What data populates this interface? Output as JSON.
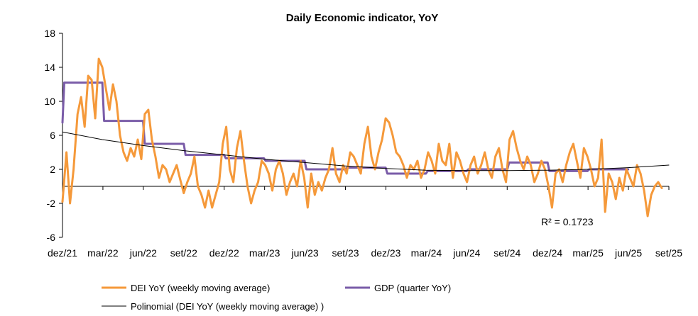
{
  "chart_data": {
    "type": "line",
    "title": "Daily Economic indicator, YoY",
    "xlabel": "",
    "ylabel": "",
    "ylim": [
      -6,
      18
    ],
    "yticks": [
      -6,
      -2,
      2,
      6,
      10,
      14,
      18
    ],
    "xlim": [
      "2021-12-01",
      "2025-09-01"
    ],
    "xticks": [
      "dez/21",
      "mar/22",
      "jun/22",
      "set/22",
      "dez/22",
      "mar/23",
      "jun/23",
      "set/23",
      "dez/23",
      "mar/24",
      "jun/24",
      "set/24",
      "dez/24",
      "mar/25",
      "jun/25",
      "set/25"
    ],
    "grid": false,
    "legend_placement": "bottom",
    "annotation": "R² = 0.1723",
    "series": [
      {
        "name": "DEI YoY (weekly moving average)",
        "color": "#f5993a",
        "x": [
          "2021-12-01",
          "2021-12-10",
          "2021-12-18",
          "2021-12-26",
          "2022-01-04",
          "2022-01-12",
          "2022-01-20",
          "2022-01-28",
          "2022-02-05",
          "2022-02-13",
          "2022-02-21",
          "2022-03-01",
          "2022-03-09",
          "2022-03-17",
          "2022-03-25",
          "2022-04-02",
          "2022-04-10",
          "2022-04-18",
          "2022-04-26",
          "2022-05-04",
          "2022-05-12",
          "2022-05-20",
          "2022-05-28",
          "2022-06-05",
          "2022-06-13",
          "2022-06-21",
          "2022-06-29",
          "2022-07-07",
          "2022-07-15",
          "2022-07-23",
          "2022-07-31",
          "2022-08-08",
          "2022-08-16",
          "2022-08-24",
          "2022-09-01",
          "2022-09-09",
          "2022-09-17",
          "2022-09-25",
          "2022-10-03",
          "2022-10-11",
          "2022-10-19",
          "2022-10-27",
          "2022-11-04",
          "2022-11-12",
          "2022-11-20",
          "2022-11-28",
          "2022-12-06",
          "2022-12-14",
          "2022-12-22",
          "2022-12-30",
          "2023-01-07",
          "2023-01-15",
          "2023-01-23",
          "2023-01-31",
          "2023-02-08",
          "2023-02-16",
          "2023-02-24",
          "2023-03-04",
          "2023-03-12",
          "2023-03-20",
          "2023-03-28",
          "2023-04-05",
          "2023-04-13",
          "2023-04-21",
          "2023-04-29",
          "2023-05-07",
          "2023-05-15",
          "2023-05-23",
          "2023-05-31",
          "2023-06-08",
          "2023-06-16",
          "2023-06-24",
          "2023-07-02",
          "2023-07-10",
          "2023-07-18",
          "2023-07-26",
          "2023-08-03",
          "2023-08-11",
          "2023-08-19",
          "2023-08-27",
          "2023-09-04",
          "2023-09-12",
          "2023-09-20",
          "2023-09-28",
          "2023-10-06",
          "2023-10-14",
          "2023-10-22",
          "2023-10-30",
          "2023-11-07",
          "2023-11-15",
          "2023-11-23",
          "2023-12-01",
          "2023-12-09",
          "2023-12-17",
          "2023-12-25",
          "2024-01-02",
          "2024-01-10",
          "2024-01-18",
          "2024-01-26",
          "2024-02-03",
          "2024-02-11",
          "2024-02-19",
          "2024-02-27",
          "2024-03-06",
          "2024-03-14",
          "2024-03-22",
          "2024-03-30",
          "2024-04-07",
          "2024-04-15",
          "2024-04-23",
          "2024-05-01",
          "2024-05-09",
          "2024-05-17",
          "2024-05-25",
          "2024-06-02",
          "2024-06-10",
          "2024-06-18",
          "2024-06-26",
          "2024-07-04",
          "2024-07-12",
          "2024-07-20",
          "2024-07-28",
          "2024-08-05",
          "2024-08-13",
          "2024-08-21",
          "2024-08-29",
          "2024-09-06",
          "2024-09-14",
          "2024-09-22",
          "2024-09-30",
          "2024-10-08",
          "2024-10-16",
          "2024-10-24",
          "2024-11-01",
          "2024-11-09",
          "2024-11-17",
          "2024-11-25",
          "2024-12-03",
          "2024-12-11",
          "2024-12-19",
          "2024-12-27",
          "2025-01-04",
          "2025-01-12",
          "2025-01-20",
          "2025-01-28",
          "2025-02-05",
          "2025-02-13",
          "2025-02-21",
          "2025-03-01",
          "2025-03-09",
          "2025-03-17",
          "2025-03-25",
          "2025-04-02",
          "2025-04-10",
          "2025-04-18",
          "2025-04-26",
          "2025-05-04",
          "2025-05-12",
          "2025-05-20",
          "2025-05-28",
          "2025-06-05",
          "2025-06-13",
          "2025-06-21",
          "2025-06-29",
          "2025-07-07",
          "2025-07-15",
          "2025-07-23",
          "2025-07-31",
          "2025-08-08",
          "2025-08-16"
        ],
        "values": [
          -1.8,
          4.0,
          -2.0,
          2.0,
          8.5,
          10.5,
          7.0,
          13.0,
          12.5,
          8.0,
          15.0,
          14.0,
          11.5,
          9.0,
          12.0,
          10.0,
          6.0,
          4.0,
          3.0,
          4.5,
          3.5,
          5.5,
          3.2,
          8.5,
          9.0,
          5.5,
          3.5,
          1.0,
          2.5,
          2.0,
          0.5,
          1.5,
          2.5,
          0.8,
          -0.8,
          0.5,
          1.5,
          3.5,
          0.0,
          -1.0,
          -2.5,
          -0.5,
          -2.5,
          -1.0,
          0.5,
          5.0,
          7.0,
          2.0,
          0.5,
          4.5,
          6.5,
          3.0,
          0.0,
          -2.0,
          -0.5,
          0.5,
          3.0,
          2.5,
          1.5,
          -0.5,
          2.0,
          3.0,
          1.5,
          -1.0,
          0.5,
          1.5,
          0.0,
          3.0,
          1.0,
          -2.5,
          1.5,
          -1.0,
          0.5,
          -0.5,
          1.0,
          2.0,
          4.5,
          1.5,
          0.5,
          2.5,
          1.5,
          4.0,
          3.5,
          2.5,
          1.5,
          5.0,
          7.0,
          3.5,
          2.0,
          4.0,
          5.5,
          8.0,
          7.5,
          6.0,
          4.0,
          3.5,
          2.5,
          1.0,
          2.5,
          2.0,
          3.0,
          1.0,
          2.0,
          4.0,
          3.0,
          1.5,
          5.0,
          3.0,
          2.5,
          5.0,
          1.0,
          4.0,
          3.0,
          1.5,
          0.5,
          2.5,
          3.5,
          1.5,
          2.5,
          4.0,
          2.0,
          1.0,
          3.5,
          4.5,
          2.0,
          0.5,
          5.5,
          6.5,
          4.5,
          3.0,
          2.0,
          3.5,
          2.5,
          0.5,
          1.5,
          3.0,
          2.0,
          0.0,
          -2.5,
          1.5,
          2.0,
          0.5,
          2.5,
          4.0,
          5.0,
          3.0,
          1.0,
          4.5,
          3.5,
          2.0,
          0.0,
          1.0,
          5.5,
          -3.0,
          1.5,
          0.5,
          -1.5,
          1.0,
          -0.5,
          2.0,
          1.0,
          0.0,
          2.5,
          1.5,
          -0.5,
          -3.5,
          -1.0,
          0.0,
          0.5,
          -0.2
        ]
      },
      {
        "name": "GDP (quarter YoY)",
        "color": "#7a5ca8",
        "x": [
          "2021-12-01",
          "2021-12-05",
          "2022-03-01",
          "2022-03-05",
          "2022-06-01",
          "2022-06-05",
          "2022-09-01",
          "2022-09-05",
          "2022-12-01",
          "2022-12-05",
          "2023-03-01",
          "2023-03-05",
          "2023-06-01",
          "2023-06-05",
          "2023-09-01",
          "2023-09-05",
          "2023-12-01",
          "2023-12-05",
          "2024-03-01",
          "2024-03-05",
          "2024-06-01",
          "2024-06-05",
          "2024-09-01",
          "2024-09-05",
          "2024-12-01",
          "2024-12-05",
          "2025-03-01",
          "2025-03-05",
          "2025-06-01"
        ],
        "values": [
          7.5,
          12.2,
          12.2,
          7.7,
          7.7,
          5.0,
          5.0,
          3.7,
          3.7,
          3.3,
          3.3,
          3.0,
          3.0,
          2.0,
          2.0,
          2.2,
          2.2,
          1.5,
          1.5,
          1.8,
          1.8,
          2.0,
          2.0,
          2.8,
          2.8,
          1.8,
          1.8,
          2.0,
          2.0
        ]
      },
      {
        "name": "Polinomial (DEI YoY (weekly moving average) )",
        "color": "#000000",
        "x": [
          "2021-12-01",
          "2022-03-01",
          "2022-06-01",
          "2022-09-01",
          "2022-12-01",
          "2023-03-01",
          "2023-06-01",
          "2023-09-01",
          "2023-12-01",
          "2024-03-01",
          "2024-06-01",
          "2024-09-01",
          "2024-12-01",
          "2025-03-01",
          "2025-06-01",
          "2025-09-01"
        ],
        "values": [
          6.4,
          5.5,
          4.8,
          4.2,
          3.7,
          3.2,
          2.8,
          2.4,
          2.1,
          1.9,
          1.85,
          1.85,
          1.9,
          2.0,
          2.2,
          2.5
        ]
      }
    ]
  }
}
